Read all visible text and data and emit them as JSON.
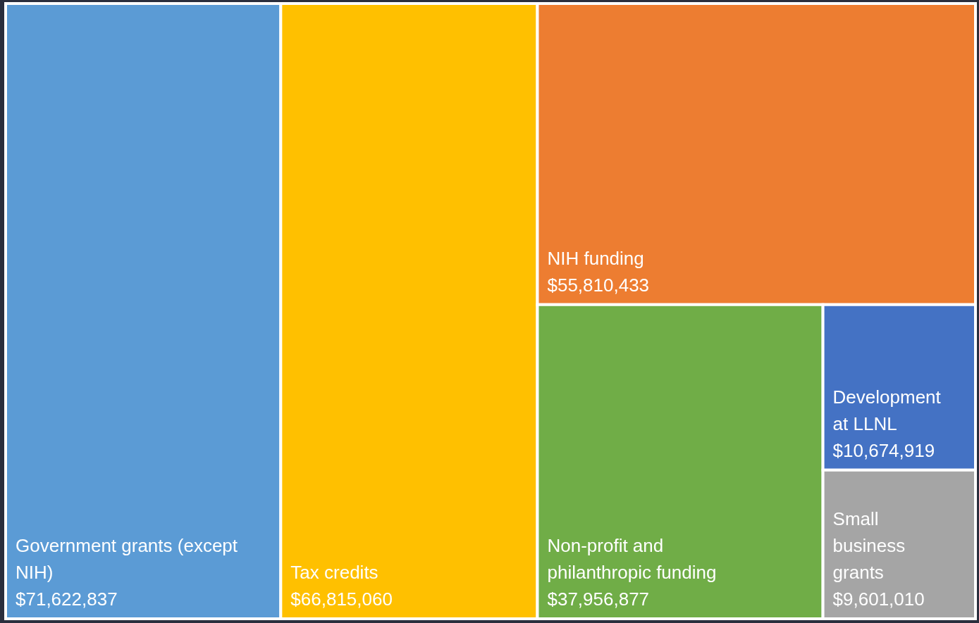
{
  "chart_data": {
    "type": "other",
    "categories": [
      "Government grants (except NIH)",
      "Tax credits",
      "NIH funding",
      "Non-profit and philanthropic funding",
      "Development at LLNL",
      "Small business grants"
    ],
    "values": [
      71622837,
      66815060,
      55810433,
      37956877,
      10674919,
      9601010
    ],
    "value_labels": [
      "$71,622,837",
      "$66,815,060",
      "$55,810,433",
      "$37,956,877",
      "$10,674,919",
      "$9,601,010"
    ],
    "colors": [
      "#5b9bd5",
      "#ffc000",
      "#ed7d31",
      "#70ad47",
      "#4472c4",
      "#a5a5a5"
    ]
  }
}
